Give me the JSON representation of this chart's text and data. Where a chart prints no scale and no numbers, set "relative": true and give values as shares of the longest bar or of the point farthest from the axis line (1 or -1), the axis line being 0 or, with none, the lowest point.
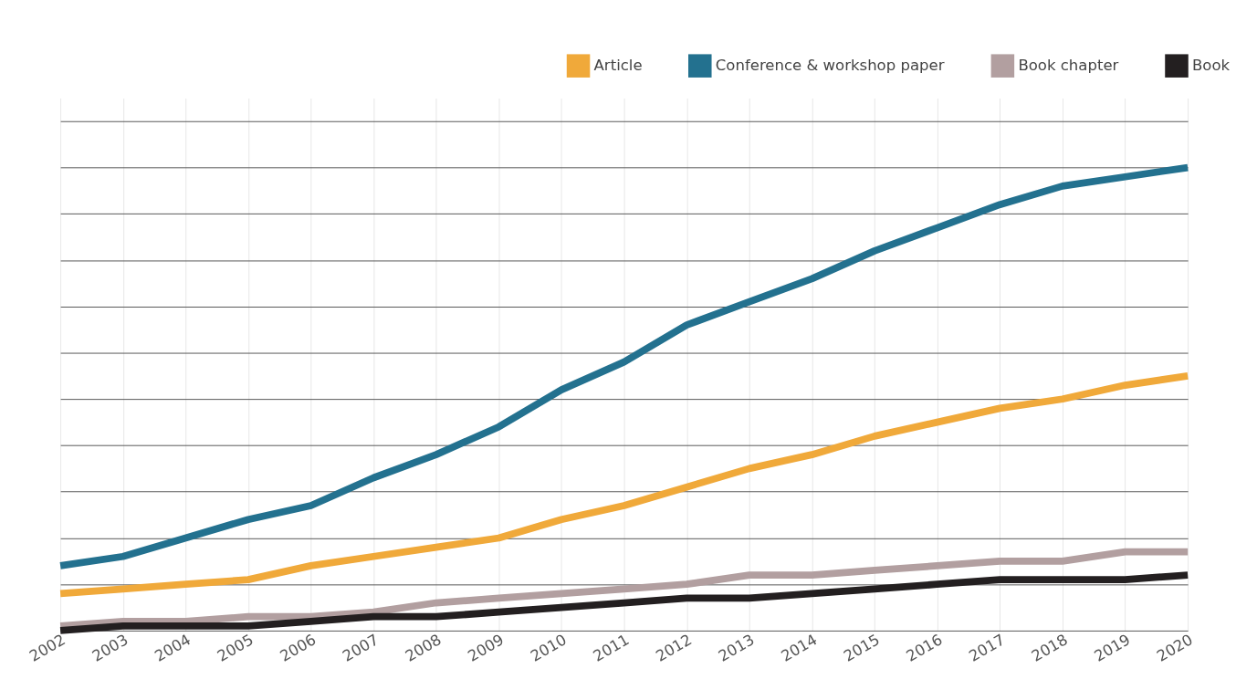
{
  "chart_data": {
    "type": "line",
    "relative": true,
    "grid": true,
    "legend": "top right",
    "marker": "none",
    "line_style": "solid",
    "categories": [
      "2002",
      "2003",
      "2004",
      "2005",
      "2006",
      "2007",
      "2008",
      "2009",
      "2010",
      "2011",
      "2012",
      "2013",
      "2014",
      "2015",
      "2016",
      "2017",
      "2018",
      "2019",
      "2020"
    ],
    "series": [
      {
        "name": "Article",
        "color": "#f0a93a",
        "values": [
          0.08,
          0.09,
          0.1,
          0.11,
          0.14,
          0.16,
          0.18,
          0.2,
          0.24,
          0.27,
          0.31,
          0.35,
          0.38,
          0.42,
          0.45,
          0.48,
          0.5,
          0.53,
          0.55
        ]
      },
      {
        "name": "Conference & workshop paper",
        "color": "#23718f",
        "values": [
          0.14,
          0.16,
          0.2,
          0.24,
          0.27,
          0.33,
          0.38,
          0.44,
          0.52,
          0.58,
          0.66,
          0.71,
          0.76,
          0.82,
          0.87,
          0.92,
          0.96,
          0.98,
          1
        ]
      },
      {
        "name": "Book chapter",
        "color": "#b29fa0",
        "values": [
          0.01,
          0.02,
          0.02,
          0.03,
          0.03,
          0.04,
          0.06,
          0.07,
          0.08,
          0.09,
          0.1,
          0.12,
          0.12,
          0.13,
          0.14,
          0.15,
          0.15,
          0.17,
          0.17
        ]
      },
      {
        "name": "Book",
        "color": "#231f20",
        "values": [
          0,
          0.01,
          0.01,
          0.01,
          0.02,
          0.03,
          0.03,
          0.04,
          0.05,
          0.06,
          0.07,
          0.07,
          0.08,
          0.09,
          0.1,
          0.11,
          0.11,
          0.11,
          0.12
        ]
      }
    ]
  }
}
